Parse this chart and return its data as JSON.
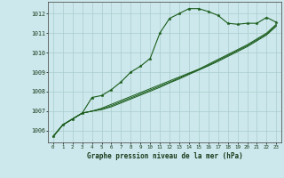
{
  "title": "Graphe pression niveau de la mer (hPa)",
  "bg_color": "#cce8ec",
  "line_color": "#1a5c1a",
  "grid_color": "#aacccc",
  "x_ticks": [
    0,
    1,
    2,
    3,
    4,
    5,
    6,
    7,
    8,
    9,
    10,
    11,
    12,
    13,
    14,
    15,
    16,
    17,
    18,
    19,
    20,
    21,
    22,
    23
  ],
  "x_tick_labels": [
    "0",
    "1",
    "2",
    "3",
    "4",
    "5",
    "6",
    "7",
    "8",
    "9",
    "10",
    "11",
    "12",
    "13",
    "14",
    "15",
    "16",
    "17",
    "18",
    "19",
    "20",
    "21",
    "22",
    "23"
  ],
  "ylim": [
    1005.4,
    1012.6
  ],
  "yticks": [
    1006,
    1007,
    1008,
    1009,
    1010,
    1011,
    1012
  ],
  "series1": [
    1005.7,
    1006.3,
    1006.6,
    1006.9,
    1007.7,
    1007.8,
    1008.1,
    1008.5,
    1009.0,
    1009.3,
    1009.7,
    1011.0,
    1011.75,
    1012.0,
    1012.25,
    1012.25,
    1012.1,
    1011.9,
    1011.5,
    1011.45,
    1011.5,
    1011.5,
    1011.8,
    1011.55
  ],
  "series2": [
    1005.7,
    1006.3,
    1006.6,
    1006.9,
    1007.0,
    1007.15,
    1007.35,
    1007.55,
    1007.75,
    1007.95,
    1008.15,
    1008.35,
    1008.55,
    1008.75,
    1008.95,
    1009.15,
    1009.4,
    1009.65,
    1009.9,
    1010.15,
    1010.4,
    1010.7,
    1011.0,
    1011.45
  ],
  "series3": [
    1005.7,
    1006.3,
    1006.6,
    1006.9,
    1007.0,
    1007.1,
    1007.28,
    1007.48,
    1007.68,
    1007.88,
    1008.08,
    1008.28,
    1008.48,
    1008.7,
    1008.92,
    1009.12,
    1009.35,
    1009.6,
    1009.85,
    1010.1,
    1010.35,
    1010.65,
    1010.95,
    1011.4
  ],
  "series4": [
    1005.7,
    1006.3,
    1006.6,
    1006.9,
    1007.0,
    1007.08,
    1007.22,
    1007.42,
    1007.62,
    1007.82,
    1008.02,
    1008.22,
    1008.45,
    1008.65,
    1008.88,
    1009.1,
    1009.32,
    1009.55,
    1009.8,
    1010.05,
    1010.3,
    1010.6,
    1010.9,
    1011.35
  ]
}
